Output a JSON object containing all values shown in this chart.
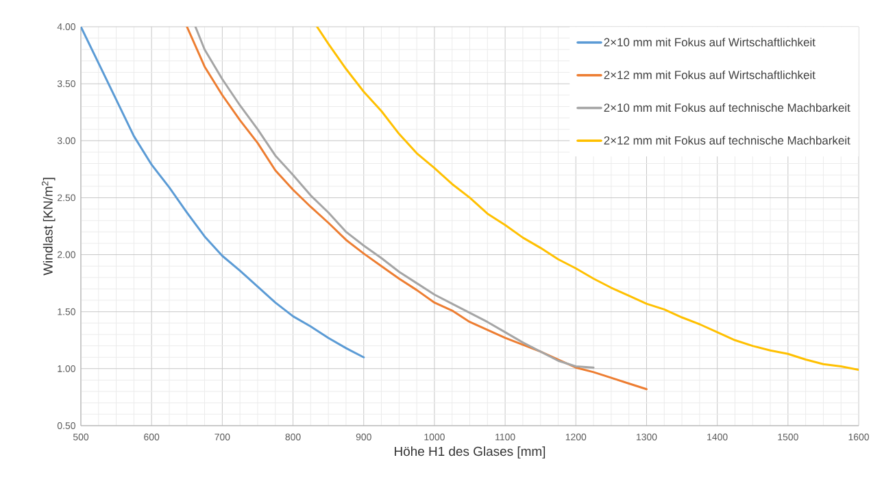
{
  "chart_data": {
    "type": "line",
    "xlabel": "Höhe H1 des Glases [mm]",
    "ylabel": "Windlast [KN/m$^{2}$]",
    "xlim": [
      500,
      1600
    ],
    "ylim": [
      0.5,
      4.0
    ],
    "xticks": [
      500,
      600,
      700,
      800,
      900,
      1000,
      1100,
      1200,
      1300,
      1400,
      1500,
      1600
    ],
    "yticks": [
      {
        "value": 0.5,
        "label": "0.50"
      },
      {
        "value": 1.0,
        "label": "1.00"
      },
      {
        "value": 1.5,
        "label": "1.50"
      },
      {
        "value": 2.0,
        "label": "2.00"
      },
      {
        "value": 2.5,
        "label": "2.50"
      },
      {
        "value": 3.0,
        "label": "3.00"
      },
      {
        "value": 3.5,
        "label": "3.50"
      },
      {
        "value": 4.0,
        "label": "4.00"
      }
    ],
    "grid": true,
    "legend": "top right",
    "marker": "none",
    "line_style": "solid",
    "series": [
      {
        "name": "2×10 mm mit Fokus auf Wirtschaftlichkeit",
        "color": "#5b9bd5",
        "x": [
          500,
          525,
          550,
          575,
          600,
          625,
          650,
          675,
          700,
          725,
          750,
          775,
          800,
          825,
          850,
          875,
          900
        ],
        "values": [
          4.0,
          3.68,
          3.36,
          3.04,
          2.79,
          2.59,
          2.37,
          2.16,
          1.99,
          1.86,
          1.72,
          1.58,
          1.46,
          1.37,
          1.27,
          1.18,
          1.1
        ]
      },
      {
        "name": "2×12 mm mit Fokus auf Wirtschaftlichkeit",
        "color": "#ed7d31",
        "x": [
          650,
          675,
          700,
          725,
          750,
          775,
          800,
          825,
          850,
          875,
          900,
          925,
          950,
          975,
          1000,
          1025,
          1050,
          1075,
          1100,
          1125,
          1150,
          1175,
          1200,
          1225,
          1250,
          1275,
          1300
        ],
        "values": [
          4.0,
          3.65,
          3.4,
          3.18,
          2.98,
          2.74,
          2.57,
          2.42,
          2.28,
          2.13,
          2.01,
          1.9,
          1.79,
          1.69,
          1.58,
          1.51,
          1.41,
          1.34,
          1.27,
          1.21,
          1.15,
          1.08,
          1.01,
          0.97,
          0.92,
          0.87,
          0.82
        ]
      },
      {
        "name": "2×10 mm mit Fokus auf technische Machbarkeit",
        "color": "#a5a5a5",
        "x": [
          662,
          675,
          700,
          725,
          750,
          775,
          800,
          825,
          850,
          875,
          900,
          925,
          950,
          975,
          1000,
          1025,
          1050,
          1075,
          1100,
          1125,
          1150,
          1175,
          1200,
          1225
        ],
        "values": [
          4.0,
          3.8,
          3.54,
          3.31,
          3.1,
          2.87,
          2.7,
          2.52,
          2.37,
          2.2,
          2.08,
          1.97,
          1.85,
          1.75,
          1.65,
          1.57,
          1.49,
          1.41,
          1.32,
          1.23,
          1.15,
          1.07,
          1.02,
          1.01
        ]
      },
      {
        "name": "2×12 mm mit Fokus auf technische Machbarkeit",
        "color": "#ffc000",
        "x": [
          834,
          850,
          875,
          900,
          925,
          950,
          975,
          1000,
          1025,
          1050,
          1075,
          1100,
          1125,
          1150,
          1175,
          1200,
          1225,
          1250,
          1275,
          1300,
          1325,
          1350,
          1375,
          1400,
          1425,
          1450,
          1475,
          1500,
          1525,
          1550,
          1575,
          1600
        ],
        "values": [
          4.0,
          3.85,
          3.63,
          3.43,
          3.26,
          3.06,
          2.89,
          2.76,
          2.62,
          2.5,
          2.36,
          2.26,
          2.15,
          2.06,
          1.96,
          1.88,
          1.79,
          1.71,
          1.64,
          1.57,
          1.52,
          1.45,
          1.39,
          1.32,
          1.25,
          1.2,
          1.16,
          1.13,
          1.08,
          1.04,
          1.02,
          0.99
        ]
      }
    ]
  }
}
